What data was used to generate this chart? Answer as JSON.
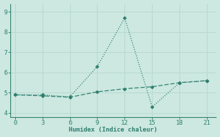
{
  "x": [
    0,
    3,
    6,
    9,
    12,
    15,
    18,
    21
  ],
  "line1_y": [
    4.9,
    4.9,
    4.8,
    6.3,
    8.7,
    4.3,
    5.5,
    5.6
  ],
  "line2_y": [
    4.9,
    4.85,
    4.78,
    5.05,
    5.2,
    5.3,
    5.5,
    5.6
  ],
  "line_color": "#2e7d6e",
  "bg_color": "#cce8e0",
  "grid_color": "#b8d8d0",
  "xlabel": "Humidex (Indice chaleur)",
  "xlim": [
    -0.5,
    22
  ],
  "ylim": [
    3.8,
    9.4
  ],
  "xticks": [
    0,
    3,
    6,
    9,
    12,
    15,
    18,
    21
  ],
  "yticks": [
    4,
    5,
    6,
    7,
    8,
    9
  ],
  "marker": "D",
  "markersize": 2.5
}
